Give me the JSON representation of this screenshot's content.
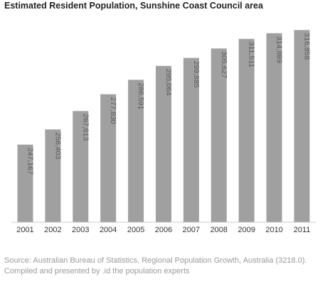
{
  "chart_data": {
    "type": "bar",
    "title": "Estimated Resident Population, Sunshine Coast Council area",
    "categories": [
      "2001",
      "2002",
      "2003",
      "2004",
      "2005",
      "2006",
      "2007",
      "2008",
      "2009",
      "2010",
      "2011"
    ],
    "values": [
      247167,
      256403,
      267613,
      277830,
      286591,
      295064,
      299885,
      305627,
      311511,
      314889,
      316858
    ],
    "data_labels": [
      "247,167",
      "256,403",
      "267,613",
      "277,830",
      "286,591",
      "295,064",
      "299,885",
      "305,627",
      "311,511",
      "314,889",
      "316,858"
    ],
    "xlabel": "",
    "ylabel": "",
    "ylim": [
      200000,
      320000
    ],
    "grid": false,
    "legend": "none",
    "bar_color": "#a0a0a0",
    "label_color": "#5a5a5a"
  },
  "source": "Source: Australian Bureau of Statistics, Regional Population Growth, Australia (3218.0). Compiled and presented by .id the population experts"
}
